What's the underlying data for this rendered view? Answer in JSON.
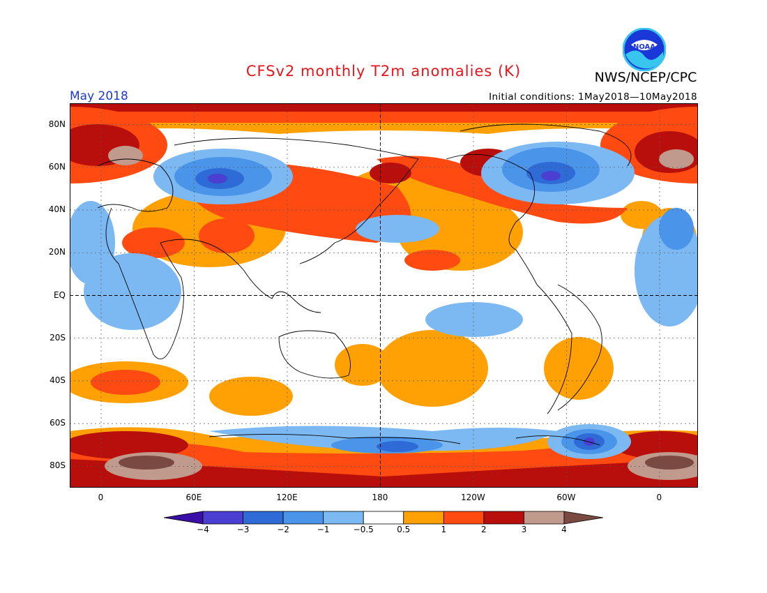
{
  "header": {
    "title": "CFSv2 monthly T2m anomalies (K)",
    "agency": "NWS/NCEP/CPC",
    "month": "May 2018",
    "initial_conditions": "Initial conditions: 1May2018—10May2018",
    "logo_text": "NOAA"
  },
  "axes": {
    "lat_labels": [
      "80N",
      "60N",
      "40N",
      "20N",
      "EQ",
      "20S",
      "40S",
      "60S",
      "80S"
    ],
    "lon_labels": [
      "0",
      "60E",
      "120E",
      "180",
      "120W",
      "60W",
      "0"
    ]
  },
  "colorbar": {
    "levels": [
      "−4",
      "−3",
      "−2",
      "−1",
      "−0.5",
      "0.5",
      "1",
      "2",
      "3",
      "4"
    ],
    "colors": [
      "#3a0fa8",
      "#4a3fd0",
      "#2e6bd6",
      "#4a95ea",
      "#7cb9f2",
      "#ffffff",
      "#ffa105",
      "#ff4b12",
      "#b80e0c",
      "#c09a8c",
      "#7a4a42"
    ]
  },
  "map_colors": {
    "ocean_base": "#ffffff",
    "coast": "#000000",
    "grid": "#555555"
  }
}
